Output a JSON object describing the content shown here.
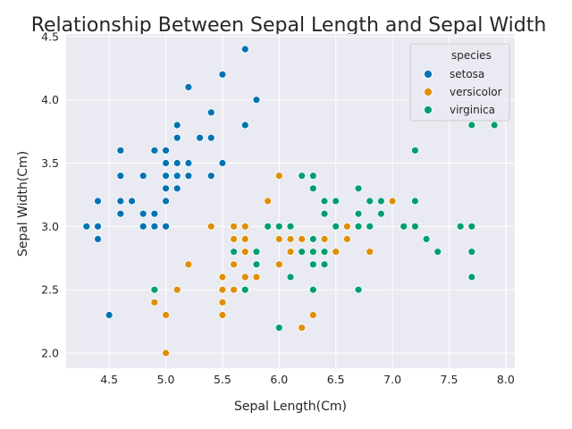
{
  "chart_data": {
    "type": "scatter",
    "title": "Relationship Between Sepal Length and Sepal Width",
    "xlabel": "Sepal Length(Cm)",
    "ylabel": "Sepal Width(Cm)",
    "xlim": [
      4.12,
      8.08
    ],
    "ylim": [
      1.88,
      4.52
    ],
    "xticks": [
      4.5,
      5.0,
      5.5,
      6.0,
      6.5,
      7.0,
      7.5,
      8.0
    ],
    "xtick_labels": [
      "4.5",
      "5.0",
      "5.5",
      "6.0",
      "6.5",
      "7.0",
      "7.5",
      "8.0"
    ],
    "yticks": [
      2.0,
      2.5,
      3.0,
      3.5,
      4.0,
      4.5
    ],
    "ytick_labels": [
      "2.0",
      "2.5",
      "3.0",
      "3.5",
      "4.0",
      "4.5"
    ],
    "grid": true,
    "background": "#eaeaf2",
    "legend": {
      "title": "species",
      "placement": "top-right"
    },
    "series": [
      {
        "name": "setosa",
        "color": "#0173b2",
        "points": [
          [
            5.1,
            3.5
          ],
          [
            4.9,
            3.0
          ],
          [
            4.7,
            3.2
          ],
          [
            4.6,
            3.1
          ],
          [
            5.0,
            3.6
          ],
          [
            5.4,
            3.9
          ],
          [
            4.6,
            3.4
          ],
          [
            5.0,
            3.4
          ],
          [
            4.4,
            2.9
          ],
          [
            4.9,
            3.1
          ],
          [
            5.4,
            3.7
          ],
          [
            4.8,
            3.4
          ],
          [
            4.8,
            3.0
          ],
          [
            4.3,
            3.0
          ],
          [
            5.8,
            4.0
          ],
          [
            5.7,
            4.4
          ],
          [
            5.4,
            3.9
          ],
          [
            5.1,
            3.5
          ],
          [
            5.7,
            3.8
          ],
          [
            5.1,
            3.8
          ],
          [
            5.4,
            3.4
          ],
          [
            5.1,
            3.7
          ],
          [
            4.6,
            3.6
          ],
          [
            5.1,
            3.3
          ],
          [
            4.8,
            3.4
          ],
          [
            5.0,
            3.0
          ],
          [
            5.0,
            3.4
          ],
          [
            5.2,
            3.5
          ],
          [
            5.2,
            3.4
          ],
          [
            4.7,
            3.2
          ],
          [
            4.8,
            3.1
          ],
          [
            5.4,
            3.4
          ],
          [
            5.2,
            4.1
          ],
          [
            5.5,
            4.2
          ],
          [
            4.9,
            3.1
          ],
          [
            5.0,
            3.2
          ],
          [
            5.5,
            3.5
          ],
          [
            4.9,
            3.6
          ],
          [
            4.4,
            3.0
          ],
          [
            5.1,
            3.4
          ],
          [
            5.0,
            3.5
          ],
          [
            4.5,
            2.3
          ],
          [
            4.4,
            3.2
          ],
          [
            5.0,
            3.5
          ],
          [
            5.1,
            3.8
          ],
          [
            4.8,
            3.0
          ],
          [
            5.1,
            3.8
          ],
          [
            4.6,
            3.2
          ],
          [
            5.3,
            3.7
          ],
          [
            5.0,
            3.3
          ]
        ]
      },
      {
        "name": "versicolor",
        "color": "#de8f05",
        "points": [
          [
            7.0,
            3.2
          ],
          [
            6.4,
            3.2
          ],
          [
            6.9,
            3.1
          ],
          [
            5.5,
            2.3
          ],
          [
            6.5,
            2.8
          ],
          [
            5.7,
            2.8
          ],
          [
            6.3,
            3.3
          ],
          [
            4.9,
            2.4
          ],
          [
            6.6,
            2.9
          ],
          [
            5.2,
            2.7
          ],
          [
            5.0,
            2.0
          ],
          [
            5.9,
            3.0
          ],
          [
            6.0,
            2.2
          ],
          [
            6.1,
            2.9
          ],
          [
            5.6,
            2.9
          ],
          [
            6.7,
            3.1
          ],
          [
            5.6,
            3.0
          ],
          [
            5.8,
            2.7
          ],
          [
            6.2,
            2.2
          ],
          [
            5.6,
            2.5
          ],
          [
            5.9,
            3.2
          ],
          [
            6.1,
            2.8
          ],
          [
            6.3,
            2.5
          ],
          [
            6.1,
            2.8
          ],
          [
            6.4,
            2.9
          ],
          [
            6.6,
            3.0
          ],
          [
            6.8,
            2.8
          ],
          [
            6.7,
            3.0
          ],
          [
            6.0,
            2.9
          ],
          [
            5.7,
            2.6
          ],
          [
            5.5,
            2.4
          ],
          [
            5.5,
            2.4
          ],
          [
            5.8,
            2.7
          ],
          [
            6.0,
            2.7
          ],
          [
            5.4,
            3.0
          ],
          [
            6.0,
            3.4
          ],
          [
            6.7,
            3.1
          ],
          [
            6.3,
            2.3
          ],
          [
            5.6,
            3.0
          ],
          [
            5.5,
            2.5
          ],
          [
            5.5,
            2.6
          ],
          [
            6.1,
            3.0
          ],
          [
            5.8,
            2.6
          ],
          [
            5.0,
            2.3
          ],
          [
            5.6,
            2.7
          ],
          [
            5.7,
            3.0
          ],
          [
            5.7,
            2.9
          ],
          [
            6.2,
            2.9
          ],
          [
            5.1,
            2.5
          ],
          [
            5.7,
            2.8
          ]
        ]
      },
      {
        "name": "virginica",
        "color": "#029e73",
        "points": [
          [
            6.3,
            3.3
          ],
          [
            5.8,
            2.7
          ],
          [
            7.1,
            3.0
          ],
          [
            6.3,
            2.9
          ],
          [
            6.5,
            3.0
          ],
          [
            7.6,
            3.0
          ],
          [
            4.9,
            2.5
          ],
          [
            7.3,
            2.9
          ],
          [
            6.7,
            2.5
          ],
          [
            7.2,
            3.6
          ],
          [
            6.5,
            3.2
          ],
          [
            6.4,
            2.7
          ],
          [
            6.8,
            3.0
          ],
          [
            5.7,
            2.5
          ],
          [
            5.8,
            2.8
          ],
          [
            6.4,
            3.2
          ],
          [
            6.5,
            3.0
          ],
          [
            7.7,
            3.8
          ],
          [
            7.7,
            2.6
          ],
          [
            6.0,
            2.2
          ],
          [
            6.9,
            3.2
          ],
          [
            5.6,
            2.8
          ],
          [
            7.7,
            2.8
          ],
          [
            6.3,
            2.7
          ],
          [
            6.7,
            3.3
          ],
          [
            7.2,
            3.2
          ],
          [
            6.2,
            2.8
          ],
          [
            6.1,
            3.0
          ],
          [
            6.4,
            2.8
          ],
          [
            7.2,
            3.0
          ],
          [
            7.4,
            2.8
          ],
          [
            7.9,
            3.8
          ],
          [
            6.4,
            2.8
          ],
          [
            6.3,
            2.8
          ],
          [
            6.1,
            2.6
          ],
          [
            7.7,
            3.0
          ],
          [
            6.3,
            3.4
          ],
          [
            6.4,
            3.1
          ],
          [
            6.0,
            3.0
          ],
          [
            6.9,
            3.1
          ],
          [
            6.7,
            3.1
          ],
          [
            6.9,
            3.1
          ],
          [
            5.8,
            2.7
          ],
          [
            6.8,
            3.2
          ],
          [
            6.7,
            3.3
          ],
          [
            6.7,
            3.0
          ],
          [
            6.3,
            2.5
          ],
          [
            6.5,
            3.0
          ],
          [
            6.2,
            3.4
          ],
          [
            5.9,
            3.0
          ]
        ]
      }
    ]
  }
}
